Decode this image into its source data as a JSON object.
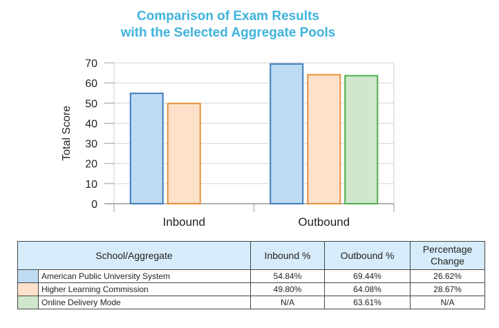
{
  "chart_data": {
    "type": "bar",
    "title": "Comparison of Exam Results\nwith the Selected Aggregate Pools",
    "title_lines": [
      "Comparison of Exam Results",
      "with the Selected Aggregate Pools"
    ],
    "ylabel": "Total Score",
    "xlabel": "",
    "ylim": [
      0,
      70
    ],
    "yticks": [
      0,
      10,
      20,
      30,
      40,
      50,
      60,
      70
    ],
    "grid": true,
    "categories": [
      "Inbound",
      "Outbound"
    ],
    "series": [
      {
        "name": "American Public University System",
        "values": [
          54.84,
          69.44
        ],
        "fill": "#bddcf3",
        "stroke": "#3f7bbd"
      },
      {
        "name": "Higher Learning Commission",
        "values": [
          49.8,
          64.08
        ],
        "fill": "#fde1cb",
        "stroke": "#e8913c"
      },
      {
        "name": "Online Delivery Mode",
        "values": [
          null,
          63.61
        ],
        "fill": "#cfe8cc",
        "stroke": "#4cae4c"
      }
    ]
  },
  "table": {
    "headers": {
      "school": "School/Aggregate",
      "inbound": "Inbound %",
      "outbound": "Outbound %",
      "change": "Percentage Change"
    },
    "rows": [
      {
        "name": "American Public University System",
        "inbound": "54.84%",
        "outbound": "69.44%",
        "change": "26.62%",
        "color": "#bddcf3"
      },
      {
        "name": "Higher Learning Commission",
        "inbound": "49.80%",
        "outbound": "64.08%",
        "change": "28.67%",
        "color": "#fde1cb"
      },
      {
        "name": "Online Delivery Mode",
        "inbound": "N/A",
        "outbound": "63.61%",
        "change": "N/A",
        "color": "#cfe8cc"
      }
    ]
  }
}
